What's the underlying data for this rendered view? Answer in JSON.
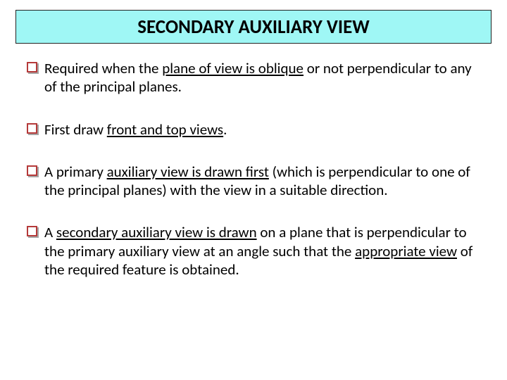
{
  "slide": {
    "title": "SECONDARY AUXILIARY VIEW",
    "title_bg": "#9ff7f5",
    "title_fontsize": 27,
    "body_fontsize": 21,
    "bullets": [
      {
        "pre": "Required when the ",
        "u1": "plane of view is oblique",
        "post": " or not perpendicular to any of the principal planes."
      },
      {
        "pre": "First draw ",
        "u1": "front and top views",
        "post": "."
      },
      {
        "pre": "A primary ",
        "u1": "auxiliary view is drawn first",
        "post": " (which is perpendicular to one of the principal planes) with the view in a suitable direction."
      },
      {
        "pre": "A ",
        "u1": "secondary auxiliary view is drawn",
        "mid": " on a plane that is perpendicular to the primary auxiliary view at an angle such that the ",
        "u2": "appropriate view",
        "post": " of the required feature is obtained."
      }
    ],
    "bullet_border_color": "#b53a3a"
  }
}
